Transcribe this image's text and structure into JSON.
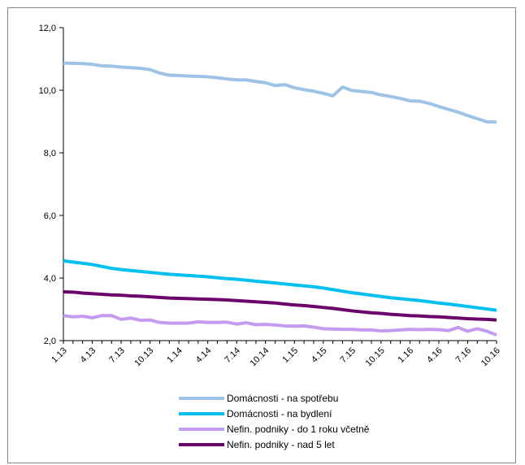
{
  "chart_data": {
    "type": "line",
    "title": "",
    "xlabel": "",
    "ylabel": "",
    "ylim": [
      2.0,
      12.0
    ],
    "y_ticks": [
      "2,0",
      "4,0",
      "6,0",
      "8,0",
      "10,0",
      "12,0"
    ],
    "y_tick_values": [
      2,
      4,
      6,
      8,
      10,
      12
    ],
    "x": [
      "1.13",
      "2.13",
      "3.13",
      "4.13",
      "5.13",
      "6.13",
      "7.13",
      "8.13",
      "9.13",
      "10.13",
      "11.13",
      "12.13",
      "1.14",
      "2.14",
      "3.14",
      "4.14",
      "5.14",
      "6.14",
      "7.14",
      "8.14",
      "9.14",
      "10.14",
      "11.14",
      "12.14",
      "1.15",
      "2.15",
      "3.15",
      "4.15",
      "5.15",
      "6.15",
      "7.15",
      "8.15",
      "9.15",
      "10.15",
      "11.15",
      "12.15",
      "1.16",
      "2.16",
      "3.16",
      "4.16",
      "5.16",
      "6.16",
      "7.16",
      "8.16",
      "9.16",
      "10.16"
    ],
    "x_tick_labels": [
      "1.13",
      "4.13",
      "7.13",
      "10.13",
      "1.14",
      "4.14",
      "7.14",
      "10.14",
      "1.15",
      "4.15",
      "7.15",
      "10.15",
      "1.16",
      "4.16",
      "7.16",
      "10.16"
    ],
    "grid": false,
    "legend_position": "bottom",
    "series": [
      {
        "name": "Domácnosti - na spotřebu",
        "color": "#9dc3e6",
        "values": [
          10.87,
          10.86,
          10.85,
          10.83,
          10.78,
          10.77,
          10.74,
          10.72,
          10.7,
          10.66,
          10.55,
          10.48,
          10.47,
          10.45,
          10.44,
          10.43,
          10.4,
          10.36,
          10.33,
          10.33,
          10.28,
          10.24,
          10.15,
          10.18,
          10.08,
          10.02,
          9.97,
          9.9,
          9.82,
          10.1,
          9.99,
          9.96,
          9.93,
          9.85,
          9.8,
          9.74,
          9.66,
          9.65,
          9.58,
          9.48,
          9.39,
          9.3,
          9.19,
          9.09,
          8.99,
          8.98
        ]
      },
      {
        "name": "Domácnosti - na bydlení",
        "color": "#00c0f0",
        "values": [
          4.55,
          4.51,
          4.47,
          4.43,
          4.37,
          4.31,
          4.27,
          4.24,
          4.21,
          4.18,
          4.15,
          4.12,
          4.1,
          4.08,
          4.06,
          4.04,
          4.01,
          3.98,
          3.96,
          3.93,
          3.9,
          3.87,
          3.84,
          3.81,
          3.78,
          3.75,
          3.72,
          3.68,
          3.63,
          3.58,
          3.53,
          3.49,
          3.45,
          3.41,
          3.37,
          3.34,
          3.31,
          3.28,
          3.24,
          3.2,
          3.17,
          3.13,
          3.09,
          3.05,
          3.01,
          2.97
        ]
      },
      {
        "name": "Nefin. podniky - do 1 roku včetně",
        "color": "#c39bf0",
        "values": [
          2.8,
          2.76,
          2.78,
          2.73,
          2.8,
          2.8,
          2.68,
          2.72,
          2.65,
          2.66,
          2.58,
          2.56,
          2.56,
          2.56,
          2.6,
          2.58,
          2.58,
          2.59,
          2.53,
          2.57,
          2.51,
          2.52,
          2.5,
          2.47,
          2.46,
          2.47,
          2.43,
          2.38,
          2.37,
          2.36,
          2.36,
          2.34,
          2.34,
          2.31,
          2.32,
          2.34,
          2.36,
          2.35,
          2.36,
          2.35,
          2.32,
          2.42,
          2.3,
          2.38,
          2.3,
          2.18
        ]
      },
      {
        "name": "Nefin. podniky - nad 5 let",
        "color": "#6b006b",
        "values": [
          3.56,
          3.55,
          3.52,
          3.5,
          3.48,
          3.46,
          3.45,
          3.43,
          3.42,
          3.4,
          3.38,
          3.36,
          3.35,
          3.34,
          3.33,
          3.32,
          3.31,
          3.3,
          3.28,
          3.26,
          3.24,
          3.22,
          3.2,
          3.17,
          3.14,
          3.12,
          3.09,
          3.06,
          3.03,
          2.99,
          2.95,
          2.92,
          2.89,
          2.87,
          2.84,
          2.82,
          2.8,
          2.79,
          2.77,
          2.76,
          2.74,
          2.72,
          2.7,
          2.69,
          2.68,
          2.66
        ]
      }
    ]
  }
}
